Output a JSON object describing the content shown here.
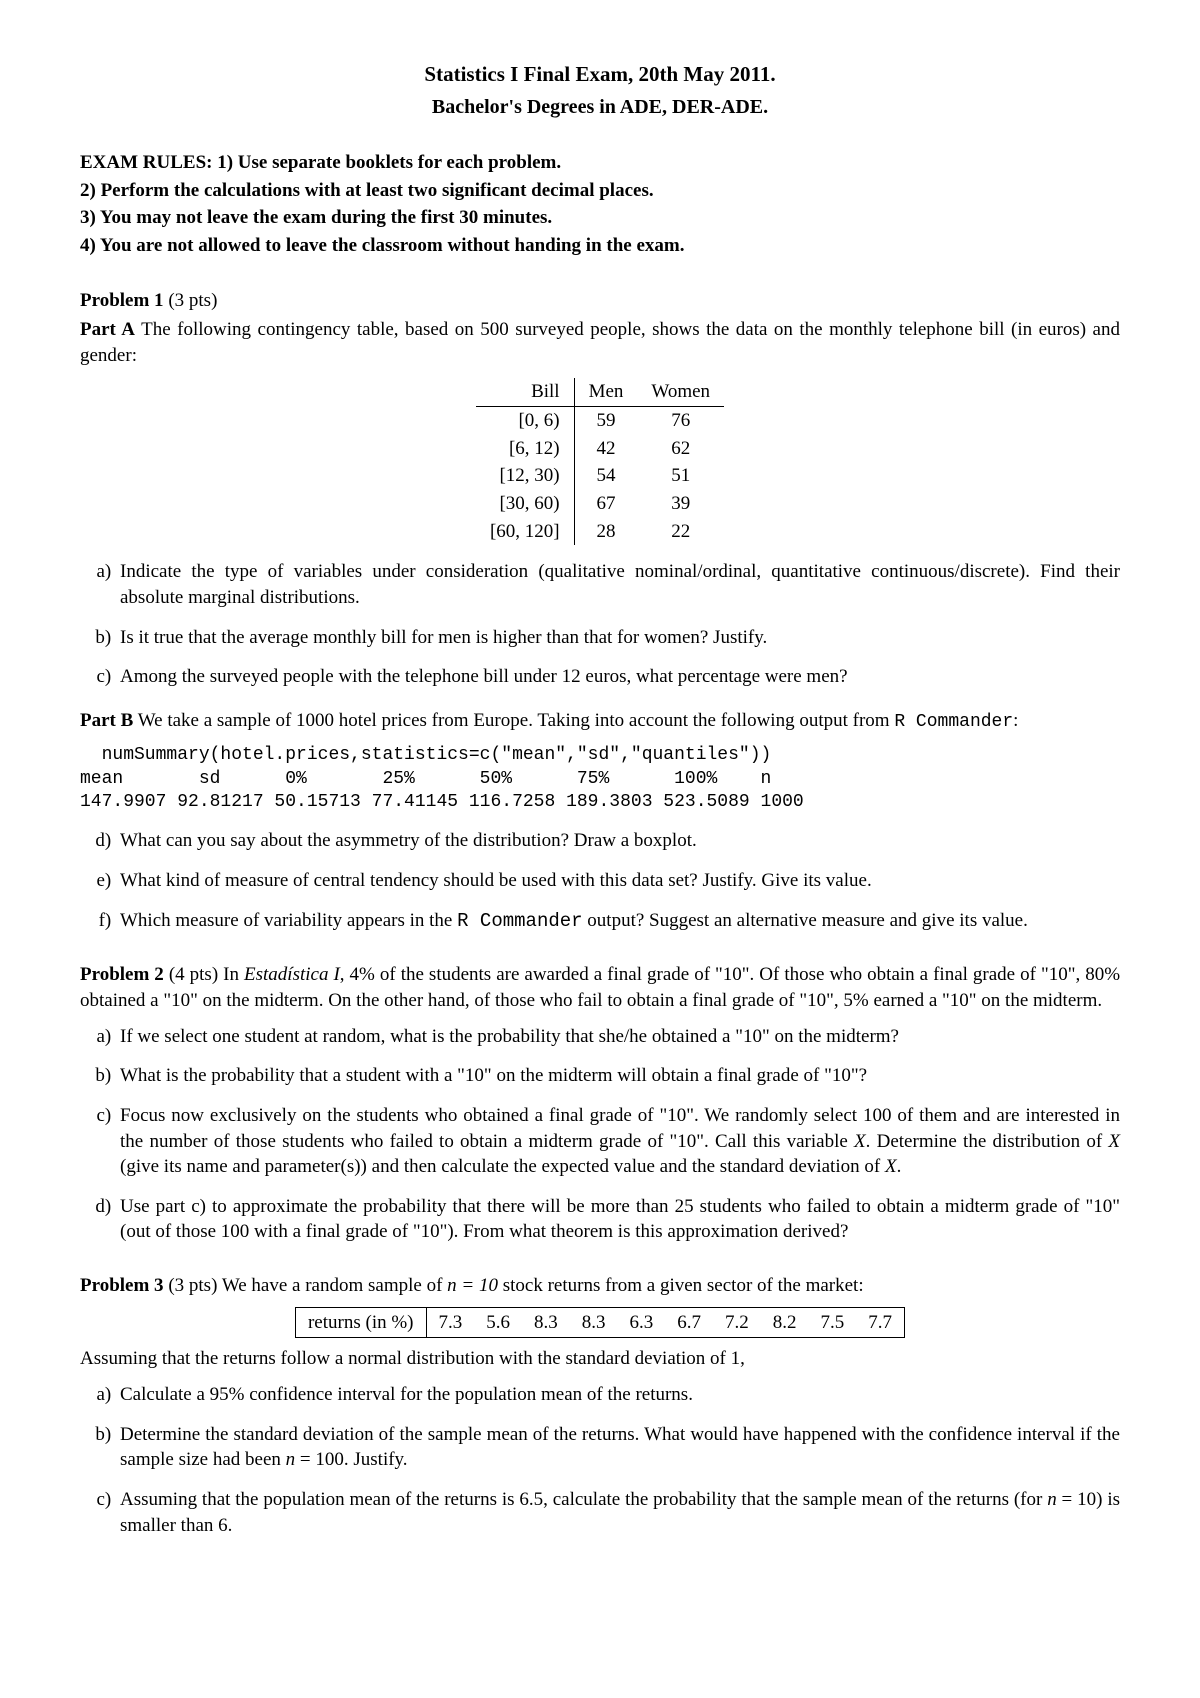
{
  "header": {
    "title": "Statistics I Final Exam, 20th May 2011.",
    "subtitle": "Bachelor's Degrees in ADE, DER-ADE."
  },
  "rules": {
    "prefix": "EXAM RULES: ",
    "items": [
      "1) Use separate booklets for each problem.",
      "2) Perform the calculations with at least two significant decimal places.",
      "3) You may not leave the exam during the first 30 minutes.",
      "4) You are not allowed to leave the classroom without handing in the exam."
    ]
  },
  "p1": {
    "heading": "Problem 1",
    "points": "(3 pts)",
    "partA": {
      "label": "Part A",
      "text": "The following contingency table, based on 500 surveyed people, shows the data on the monthly telephone bill (in euros) and gender:"
    },
    "ctable": {
      "columns": [
        "Bill",
        "Men",
        "Women"
      ],
      "rows": [
        [
          "[0, 6)",
          "59",
          "76"
        ],
        [
          "[6, 12)",
          "42",
          "62"
        ],
        [
          "[12, 30)",
          "54",
          "51"
        ],
        [
          "[30, 60)",
          "67",
          "39"
        ],
        [
          "[60, 120]",
          "28",
          "22"
        ]
      ]
    },
    "qa": [
      "Indicate the type of variables under consideration (qualitative nominal/ordinal, quantitative continuous/discrete). Find their absolute marginal distributions.",
      "Is it true that the average monthly bill for men is higher than that for women? Justify.",
      "Among the surveyed people with the telephone bill under 12 euros, what percentage were men?"
    ],
    "partB": {
      "label": "Part B",
      "text_before": "We take a sample of 1000 hotel prices from Europe. Taking into account the following output from ",
      "mono1": "R Commander",
      "text_after": ":"
    },
    "code": "  numSummary(hotel.prices,statistics=c(\"mean\",\"sd\",\"quantiles\"))\nmean       sd      0%       25%      50%      75%      100%    n\n147.9907 92.81217 50.15713 77.41145 116.7258 189.3803 523.5089 1000",
    "qb": [
      "What can you say about the asymmetry of the distribution? Draw a boxplot.",
      "What kind of measure of central tendency should be used with this data set? Justify. Give its value.",
      "Which measure of variability appears in the R Commander output? Suggest an alternative measure and give its value."
    ]
  },
  "p2": {
    "heading": "Problem 2",
    "points": "(4 pts)",
    "text": "In Estadística I, 4% of the students are awarded a final grade of \"10\". Of those who obtain a final grade of \"10\", 80% obtained a \"10\" on the midterm. On the other hand, of those who fail to obtain a final grade of \"10\", 5% earned a \"10\" on the midterm.",
    "qa": [
      "If we select one student at random, what is the probability that she/he obtained a \"10\" on the midterm?",
      "What is the probability that a student with a \"10\" on the midterm will obtain a final grade of \"10\"?",
      "Focus now exclusively on the students who obtained a final grade of \"10\". We randomly select 100 of them and are interested in the number of those students who failed to obtain a midterm grade of \"10\". Call this variable X. Determine the distribution of X (give its name and parameter(s)) and then calculate the expected value and the standard deviation of X.",
      "Use part c) to approximate the probability that there will be more than 25 students who failed to obtain a midterm grade of \"10\" (out of those 100 with a final grade of \"10\"). From what theorem is this approximation derived?"
    ]
  },
  "p3": {
    "heading": "Problem 3",
    "points": "(3 pts)",
    "text_before": "We have a random sample of ",
    "n_eq": "n = 10",
    "text_after": " stock returns from a given sector of the market:",
    "rtable": {
      "label": "returns (in %)",
      "values": [
        "7.3",
        "5.6",
        "8.3",
        "8.3",
        "6.3",
        "6.7",
        "7.2",
        "8.2",
        "7.5",
        "7.7"
      ]
    },
    "assume": "Assuming that the returns follow a normal distribution with the standard deviation of 1,",
    "qa": [
      "Calculate a 95% confidence interval for the population mean of the returns.",
      "Determine the standard deviation of the sample mean of the returns. What would have happened with the confidence interval if the sample size had been n = 100. Justify.",
      "Assuming that the population mean of the returns is 6.5, calculate the probability that the sample mean of the returns (for n = 10) is smaller than 6."
    ]
  }
}
